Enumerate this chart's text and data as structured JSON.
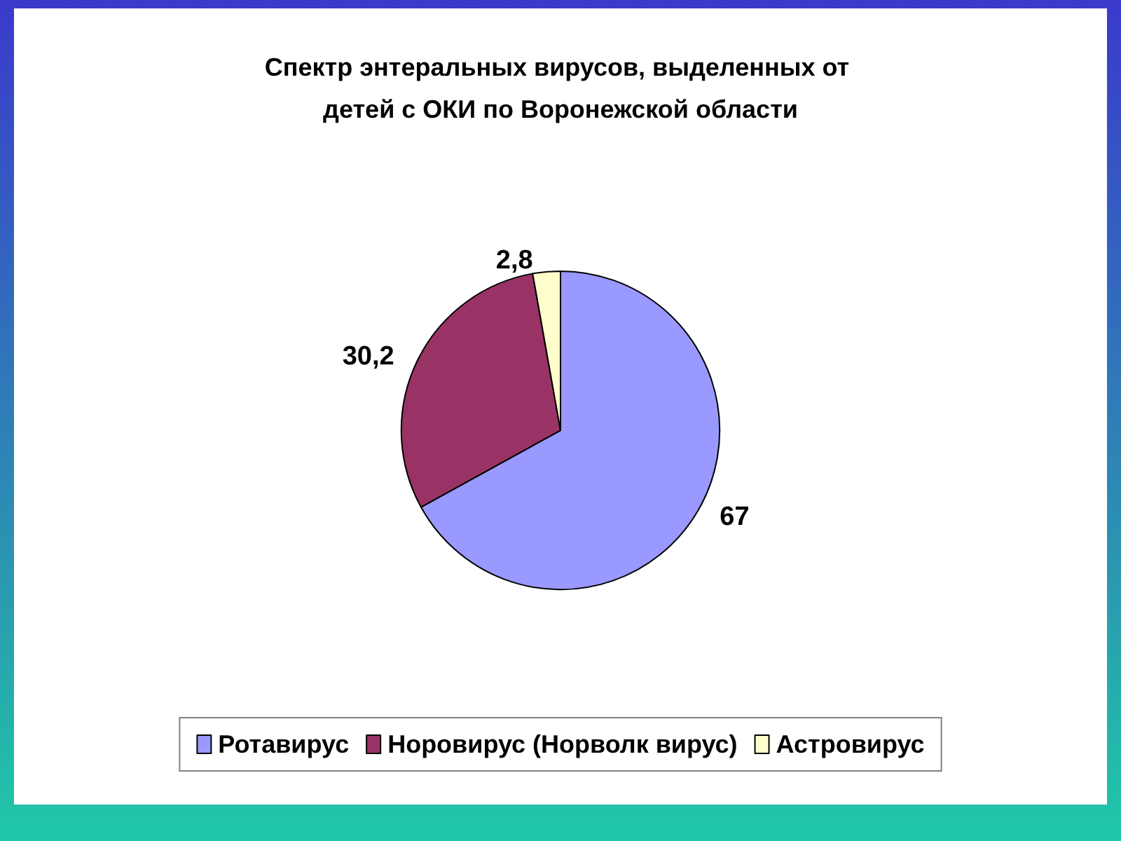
{
  "chart_data": {
    "type": "pie",
    "title": "Спектр энтеральных вирусов, выделенных от детей с ОКИ по Воронежской области",
    "categories": [
      "Ротавирус",
      "Норовирус (Норволк вирус)",
      "Астровирус"
    ],
    "values": [
      67,
      30.2,
      2.8
    ],
    "colors": [
      "#9999ff",
      "#993366",
      "#ffffcc"
    ],
    "value_labels": [
      "67",
      "30,2",
      "2,8"
    ],
    "legend": "bottom"
  }
}
